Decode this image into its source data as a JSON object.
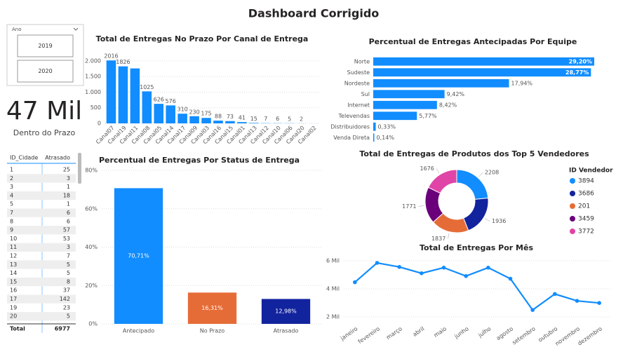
{
  "title": "Dashboard Corrigido",
  "slicer": {
    "label": "Ano",
    "options": [
      "2019",
      "2020"
    ]
  },
  "card": {
    "value": "47 Mil",
    "label": "Dentro do Prazo"
  },
  "table": {
    "columns": [
      "ID_Cidade",
      "Atrasado"
    ],
    "rows": [
      [
        "1",
        "25"
      ],
      [
        "2",
        "3"
      ],
      [
        "3",
        "1"
      ],
      [
        "4",
        "18"
      ],
      [
        "5",
        "1"
      ],
      [
        "7",
        "6"
      ],
      [
        "8",
        "6"
      ],
      [
        "9",
        "57"
      ],
      [
        "10",
        "53"
      ],
      [
        "11",
        "3"
      ],
      [
        "12",
        "7"
      ],
      [
        "13",
        "5"
      ],
      [
        "14",
        "5"
      ],
      [
        "15",
        "8"
      ],
      [
        "16",
        "37"
      ],
      [
        "17",
        "142"
      ],
      [
        "19",
        "23"
      ],
      [
        "20",
        "5"
      ]
    ],
    "total": [
      "Total",
      "6977"
    ]
  },
  "chart_data": [
    {
      "type": "bar",
      "title": "Total de Entregas No Prazo Por Canal de Entrega",
      "color": "#118dff",
      "categories": [
        "Canal07",
        "Canal19",
        "Canal11",
        "Canal08",
        "Canal05",
        "Canal14",
        "Canal17",
        "Canal09",
        "Canal03",
        "Canal16",
        "Canal15",
        "Canal01",
        "Canal13",
        "Canal12",
        "Canal10",
        "Canal06",
        "Canal20",
        "Canal02"
      ],
      "values": [
        2016,
        1826,
        1760,
        1025,
        626,
        576,
        310,
        230,
        175,
        88,
        73,
        41,
        15,
        7,
        6,
        5,
        2,
        1
      ],
      "value_labels": [
        "2016",
        "1826",
        null,
        "1025",
        "626",
        "576",
        "310",
        "230",
        "175",
        "88",
        "73",
        "41",
        "15",
        "7",
        "6",
        "5",
        "2",
        null
      ],
      "ylim": [
        0,
        2200
      ],
      "yticks": [
        0,
        500,
        {
          "value": 1000,
          "label": "1.000"
        },
        {
          "value": 1500,
          "label": "1.500"
        },
        {
          "value": 2000,
          "label": "2.000"
        }
      ],
      "grid": true
    },
    {
      "type": "hbar",
      "title": "Percentual de Entregas Antecipadas Por Equipe",
      "color": "#118dff",
      "categories": [
        "Norte",
        "Sudeste",
        "Nordeste",
        "Sul",
        "Internet",
        "Televendas",
        "Distribuidores",
        "Venda Direta"
      ],
      "values": [
        29.2,
        28.77,
        17.94,
        9.42,
        8.42,
        5.77,
        0.33,
        0.14
      ],
      "value_labels": [
        "29,20%",
        "28,77%",
        "17,94%",
        "9,42%",
        "8,42%",
        "5,77%",
        "0,33%",
        "0,14%"
      ],
      "xlim": [
        0,
        29.2
      ]
    },
    {
      "type": "bar",
      "title": "Percentual de Entregas Por Status de Entrega",
      "categories": [
        "Antecipado",
        "No Prazo",
        "Atrasado"
      ],
      "colors": [
        "#118dff",
        "#e66c37",
        "#12239e"
      ],
      "values": [
        70.71,
        16.31,
        12.98
      ],
      "value_labels": [
        "70,71%",
        "16,31%",
        "12,98%"
      ],
      "ylim": [
        0,
        80
      ],
      "yticks": [
        {
          "value": 0,
          "label": "0%"
        },
        {
          "value": 20,
          "label": "20%"
        },
        {
          "value": 40,
          "label": "40%"
        },
        {
          "value": 60,
          "label": "60%"
        },
        {
          "value": 80,
          "label": "80%"
        }
      ],
      "grid": true
    },
    {
      "type": "donut",
      "title": "Total de Entregas de Produtos dos Top 5 Vendedores",
      "legend_title": "ID Vendedor",
      "categories": [
        "3894",
        "3686",
        "201",
        "3459",
        "3772"
      ],
      "values": [
        2208,
        1936,
        1837,
        1771,
        1676
      ],
      "colors": [
        "#118dff",
        "#12239e",
        "#e66c37",
        "#6b007b",
        "#e044a7"
      ],
      "legend": "right"
    },
    {
      "type": "line",
      "title": "Total de Entregas Por Mês",
      "color": "#118dff",
      "categories": [
        "janeiro",
        "fevereiro",
        "março",
        "abril",
        "maio",
        "junho",
        "julho",
        "agosto",
        "setembro",
        "outubro",
        "novembro",
        "dezembro"
      ],
      "values": [
        4470,
        5850,
        5560,
        5110,
        5510,
        4910,
        5510,
        4720,
        2490,
        3630,
        3140,
        2990
      ],
      "ylim": [
        1500,
        6500
      ],
      "yticks": [
        {
          "value": 2000,
          "label": "2 Mil"
        },
        {
          "value": 4000,
          "label": "4 Mil"
        },
        {
          "value": 6000,
          "label": "6 Mil"
        }
      ],
      "grid": true
    }
  ]
}
